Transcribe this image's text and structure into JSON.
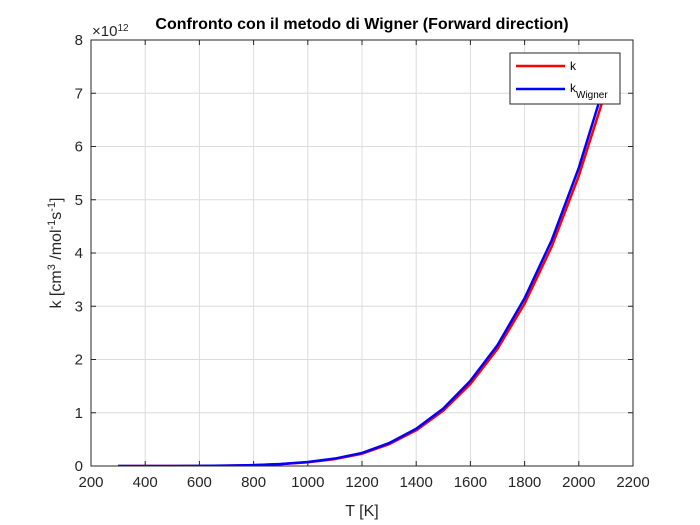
{
  "chart_data": {
    "type": "line",
    "title": "Confronto con il metodo di Wigner (Forward direction)",
    "xlabel": "T [K]",
    "ylabel": "k [cm^3 /mol^-1 s^-1]",
    "xlim": [
      200,
      2200
    ],
    "ylim": [
      0,
      8
    ],
    "y_multiplier": "×10^12",
    "x_ticks": [
      200,
      400,
      600,
      800,
      1000,
      1200,
      1400,
      1600,
      1800,
      2000,
      2200
    ],
    "y_ticks": [
      0,
      1,
      2,
      3,
      4,
      5,
      6,
      7,
      8
    ],
    "grid": true,
    "legend_position": "top-right",
    "x": [
      300,
      400,
      500,
      600,
      700,
      800,
      900,
      1000,
      1100,
      1200,
      1300,
      1400,
      1500,
      1600,
      1700,
      1800,
      1900,
      2000,
      2100
    ],
    "series": [
      {
        "name": "k",
        "color": "#ff0000",
        "values": [
          0.0,
          0.0,
          0.0,
          0.002,
          0.006,
          0.015,
          0.035,
          0.07,
          0.13,
          0.23,
          0.41,
          0.67,
          1.04,
          1.54,
          2.2,
          3.05,
          4.12,
          5.45,
          7.05
        ]
      },
      {
        "name": "k_Wigner",
        "color": "#0000ff",
        "values": [
          0.0,
          0.0,
          0.0,
          0.002,
          0.007,
          0.017,
          0.038,
          0.075,
          0.14,
          0.245,
          0.43,
          0.7,
          1.08,
          1.6,
          2.27,
          3.15,
          4.24,
          5.6,
          7.25
        ]
      }
    ]
  }
}
